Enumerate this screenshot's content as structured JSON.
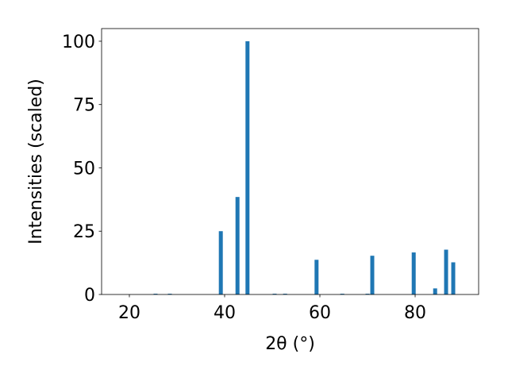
{
  "chart_data": {
    "type": "bar",
    "xlabel": "2θ (°)",
    "ylabel": "Intensities (scaled)",
    "x": [
      25.5,
      28.5,
      39.2,
      42.7,
      44.8,
      50.5,
      52.7,
      59.3,
      64.7,
      70.0,
      71.0,
      79.7,
      84.2,
      86.5,
      88.0
    ],
    "values": [
      0.3,
      0.3,
      25,
      38.5,
      100,
      0.3,
      0.3,
      13.7,
      0.3,
      0.3,
      15.3,
      16.6,
      2.4,
      17.7,
      12.7
    ],
    "color": "#1f77b4",
    "xlim": [
      14.17,
      93.33
    ],
    "ylim": [
      0,
      105
    ],
    "xticks": [
      20,
      40,
      60,
      80
    ],
    "yticks": [
      0,
      25,
      50,
      75,
      100
    ]
  }
}
